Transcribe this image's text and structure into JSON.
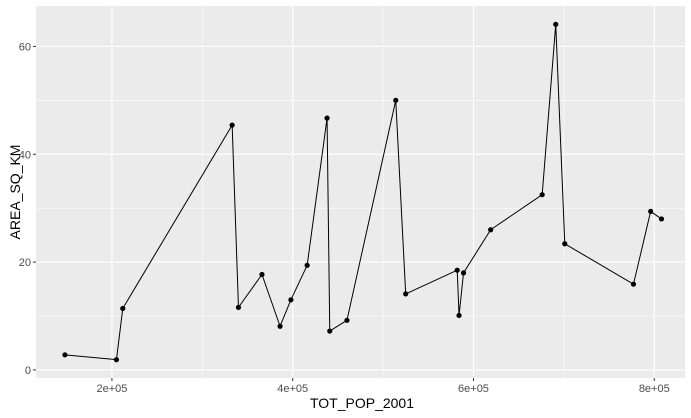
{
  "chart_data": {
    "type": "line",
    "xlabel": "TOT_POP_2001",
    "ylabel": "AREA_SQ_KM",
    "xlim": [
      116000,
      834000
    ],
    "ylim": [
      -1.5,
      67.5
    ],
    "x_ticks": [
      200000,
      400000,
      600000,
      800000
    ],
    "x_tick_labels": [
      "2e+05",
      "4e+05",
      "6e+05",
      "8e+05"
    ],
    "y_ticks": [
      0,
      20,
      40,
      60
    ],
    "y_tick_labels": [
      "0",
      "20",
      "40",
      "60"
    ],
    "grid": true,
    "markers": true,
    "colors": {
      "panel": "#ebebeb",
      "grid": "#ffffff",
      "line": "#000000",
      "point": "#000000"
    },
    "x": [
      148000,
      205000,
      212000,
      333000,
      340000,
      366000,
      386000,
      398000,
      416000,
      438000,
      441000,
      460000,
      514000,
      525000,
      582000,
      584000,
      589000,
      619000,
      676000,
      691000,
      701000,
      777000,
      796000,
      808000
    ],
    "y": [
      2.8,
      1.9,
      11.4,
      45.4,
      11.6,
      17.7,
      8.1,
      13.0,
      19.4,
      46.7,
      7.2,
      9.2,
      50.0,
      14.1,
      18.5,
      10.1,
      18.0,
      26.0,
      32.5,
      64.1,
      23.4,
      15.9,
      29.4,
      28.0
    ]
  }
}
